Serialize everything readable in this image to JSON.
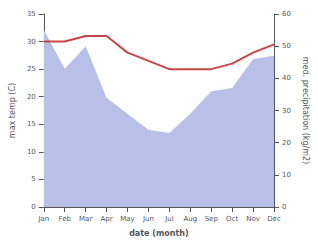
{
  "chart_data": {
    "type": "line",
    "categories": [
      "Jan",
      "Feb",
      "Mar",
      "Apr",
      "May",
      "Jun",
      "Jul",
      "Aug",
      "Sep",
      "Oct",
      "Nov",
      "Dec"
    ],
    "series": [
      {
        "type": "area",
        "color": "#b8c0e8",
        "axis": "y2",
        "values": [
          55.0,
          43.0,
          50.0,
          34.0,
          29.0,
          24.0,
          23.0,
          29.0,
          36.0,
          37.0,
          46.0,
          47.0
        ]
      },
      {
        "type": "line",
        "color": "#cc4444",
        "values": [
          30.0,
          30.0,
          31.0,
          31.0,
          28.0,
          26.5,
          25.0,
          25.0,
          25.0,
          26.0,
          28.0,
          29.5
        ]
      }
    ],
    "xlabel": "date (month)",
    "ylabel": "max temp (C)",
    "y2label": "med. precipitation (kg/m2)",
    "ylim": [
      0,
      35
    ],
    "yticks": [
      0,
      5,
      10,
      15,
      20,
      25,
      30,
      35
    ],
    "y2lim": [
      0,
      60
    ],
    "y2ticks": [
      0,
      10,
      20,
      30,
      40,
      50,
      60
    ],
    "grid": false
  }
}
